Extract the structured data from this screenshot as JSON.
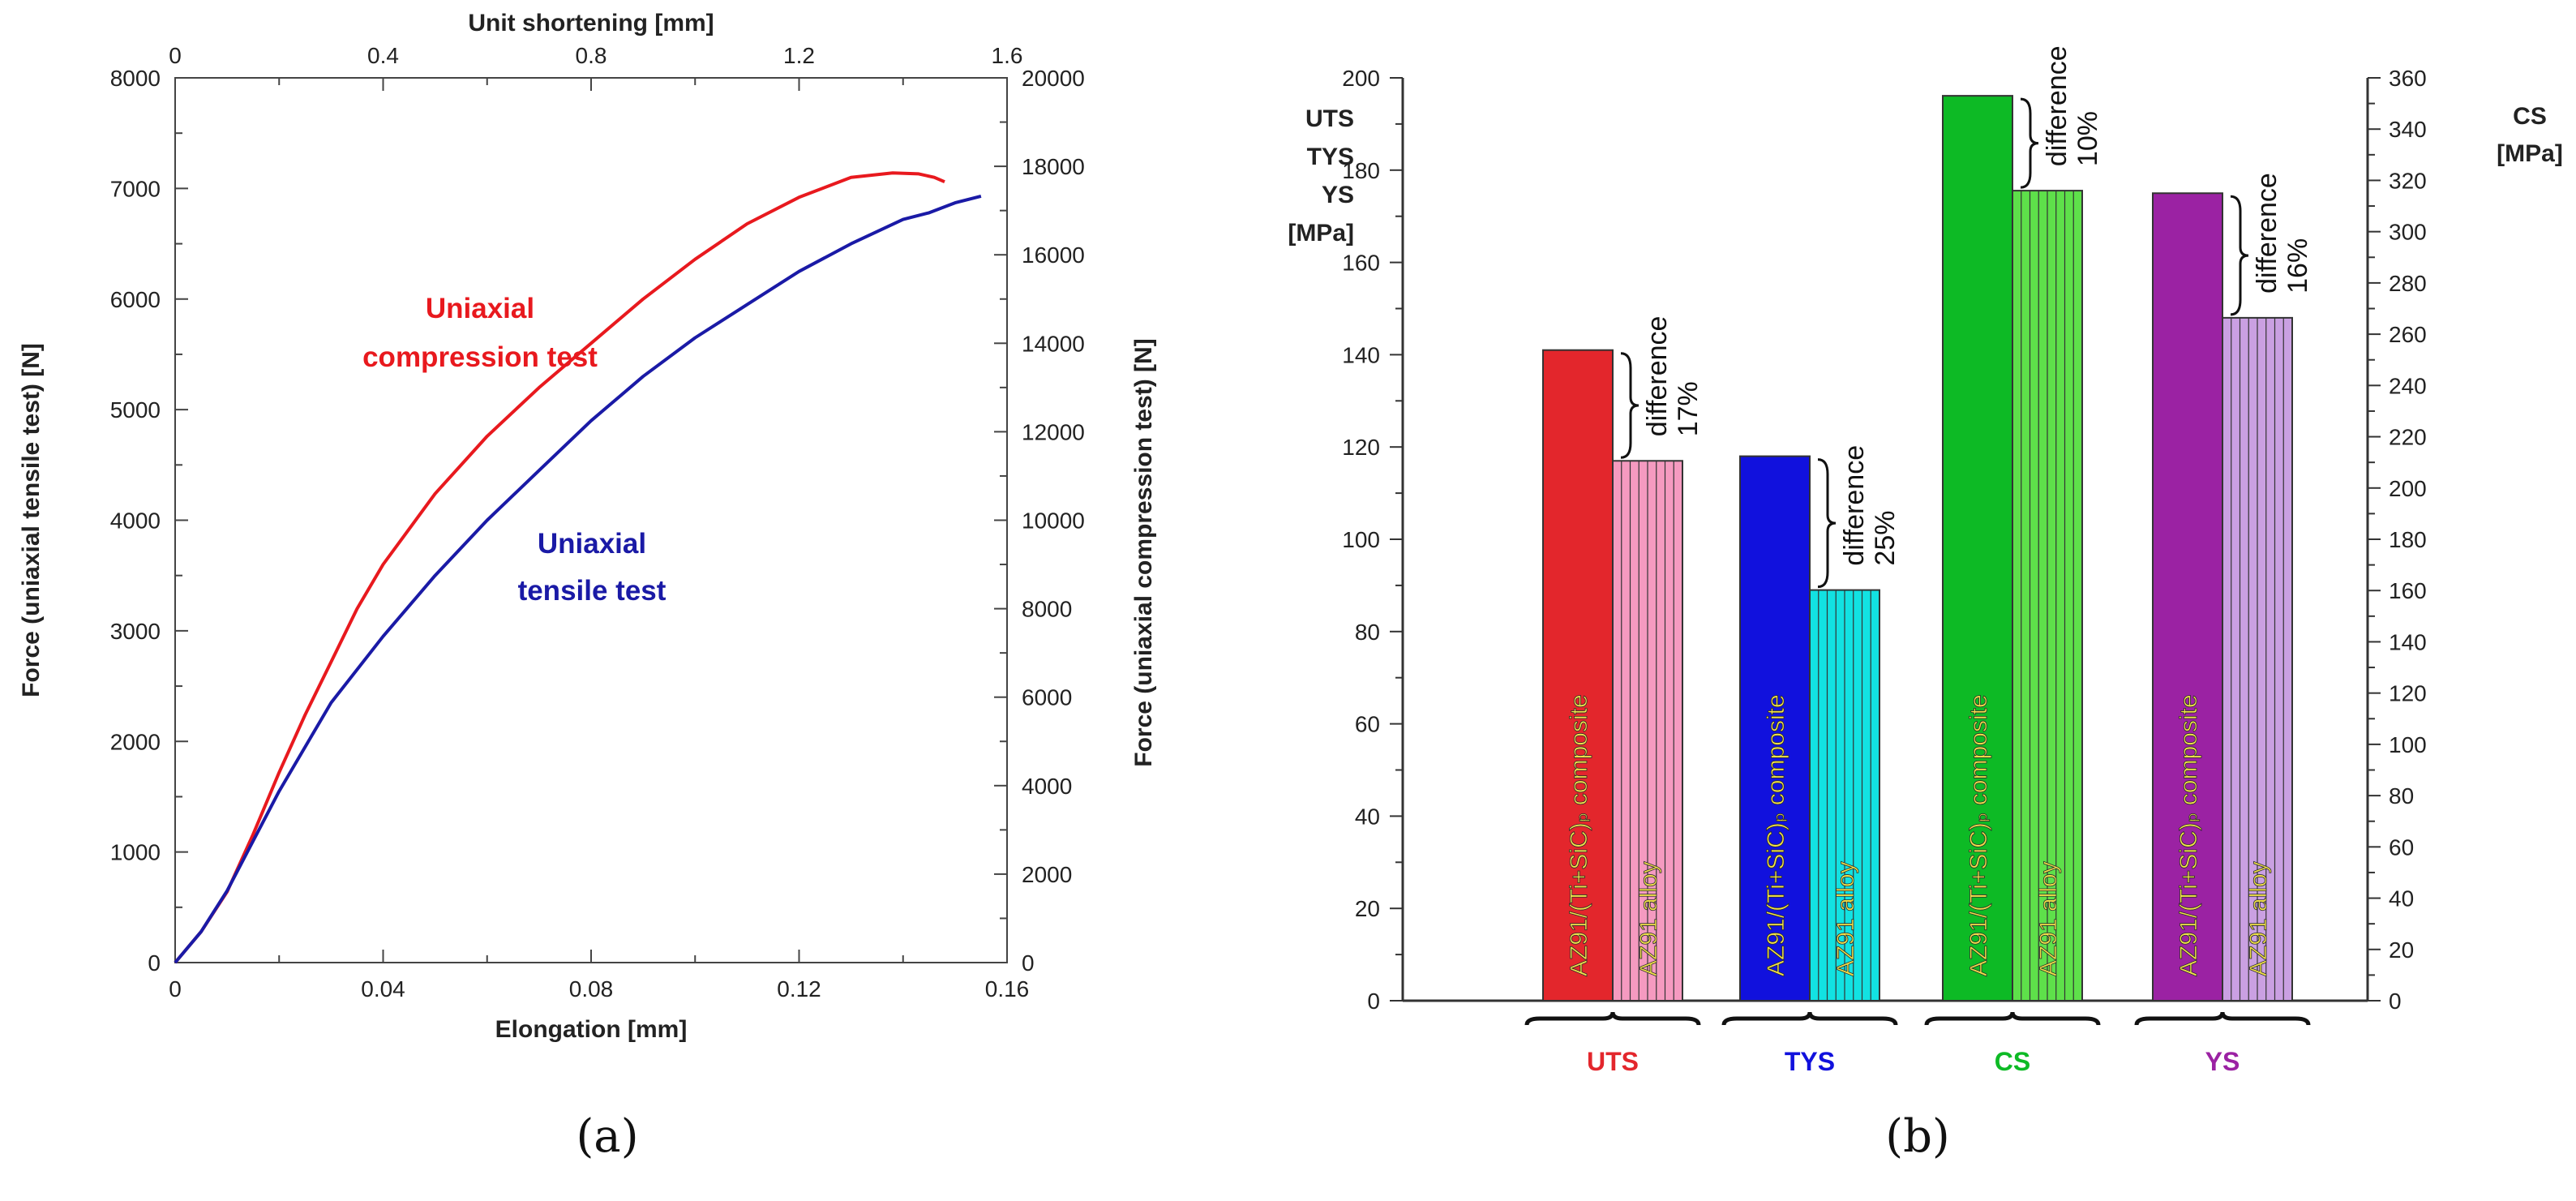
{
  "chart_data": [
    {
      "type": "line",
      "panel_label": "(a)",
      "xlabel": "Elongation [mm]",
      "xlim": [
        0,
        0.16
      ],
      "xticks": [
        "0",
        "0.04",
        "0.08",
        "0.12",
        "0.16"
      ],
      "x2label": "Unit shortening [mm]",
      "x2lim": [
        0,
        1.6
      ],
      "x2ticks": [
        "0",
        "0.4",
        "0.8",
        "1.2",
        "1.6"
      ],
      "ylabel": "Force (uniaxial tensile test) [N]",
      "ylim": [
        0,
        8000
      ],
      "yticks": [
        "0",
        "1000",
        "2000",
        "3000",
        "4000",
        "5000",
        "6000",
        "7000",
        "8000"
      ],
      "y2label": "Force (uniaxial compression test) [N]",
      "y2lim": [
        0,
        20000
      ],
      "y2ticks": [
        "0",
        "2000",
        "4000",
        "6000",
        "8000",
        "10000",
        "12000",
        "14000",
        "16000",
        "18000",
        "20000"
      ],
      "series": [
        {
          "name": "Uniaxial compression test",
          "label_lines": [
            "Uniaxial",
            "compression test"
          ],
          "color": "#e8191e",
          "axes": "top-right",
          "x": [
            0,
            0.05,
            0.1,
            0.15,
            0.2,
            0.25,
            0.3,
            0.35,
            0.4,
            0.5,
            0.6,
            0.7,
            0.8,
            0.9,
            1.0,
            1.1,
            1.2,
            1.3,
            1.38,
            1.43,
            1.46,
            1.48
          ],
          "y": [
            0,
            700,
            1600,
            2900,
            4300,
            5600,
            6800,
            8000,
            9000,
            10600,
            11900,
            13000,
            14000,
            15000,
            15900,
            16700,
            17300,
            17750,
            17850,
            17830,
            17750,
            17650
          ]
        },
        {
          "name": "Uniaxial tensile test",
          "label_lines": [
            "Uniaxial",
            "tensile test"
          ],
          "color": "#1a1aa6",
          "axes": "bottom-left",
          "x": [
            0,
            0.005,
            0.01,
            0.015,
            0.02,
            0.025,
            0.03,
            0.04,
            0.05,
            0.06,
            0.07,
            0.08,
            0.09,
            0.1,
            0.11,
            0.12,
            0.13,
            0.14,
            0.145,
            0.15,
            0.155
          ],
          "y": [
            0,
            280,
            650,
            1100,
            1550,
            1950,
            2350,
            2950,
            3500,
            4000,
            4450,
            4900,
            5300,
            5650,
            5950,
            6250,
            6500,
            6720,
            6780,
            6870,
            6930
          ]
        }
      ]
    },
    {
      "type": "bar",
      "panel_label": "(b)",
      "ylabel_lines": [
        "UTS",
        "TYS",
        "YS",
        "[MPa]"
      ],
      "ylim": [
        0,
        200
      ],
      "yticks": [
        "0",
        "20",
        "40",
        "60",
        "80",
        "100",
        "120",
        "140",
        "160",
        "180",
        "200"
      ],
      "y2label_lines": [
        "CS",
        "[MPa]"
      ],
      "y2lim": [
        0,
        360
      ],
      "y2ticks": [
        "0",
        "20",
        "40",
        "60",
        "80",
        "100",
        "120",
        "140",
        "160",
        "180",
        "200",
        "220",
        "240",
        "260",
        "280",
        "300",
        "320",
        "340",
        "360"
      ],
      "groups": [
        {
          "category": "UTS",
          "color": "#e3262c",
          "light": "#f59ac0",
          "composite_label": "AZ91/(Ti+SiC)ₚ composite",
          "alloy_label": "AZ91 alloy",
          "composite_value": 141,
          "alloy_value": 117,
          "axis": "left",
          "difference_label": "difference",
          "difference_pct": "17%"
        },
        {
          "category": "TYS",
          "color": "#1111dd",
          "light": "#12e2e2",
          "composite_label": "AZ91/(Ti+SiC)ₚ composite",
          "alloy_label": "AZ91 alloy",
          "composite_value": 118,
          "alloy_value": 89,
          "axis": "left",
          "difference_label": "difference",
          "difference_pct": "25%"
        },
        {
          "category": "CS",
          "color": "#0dba25",
          "light": "#5ee04a",
          "composite_label": "AZ91/(Ti+SiC)ₚ composite",
          "alloy_label": "AZ91 alloy",
          "composite_value": 353,
          "alloy_value": 316,
          "axis": "right",
          "difference_label": "difference",
          "difference_pct": "10%"
        },
        {
          "category": "YS",
          "color": "#9b22a3",
          "light": "#caa0e2",
          "composite_label": "AZ91/(Ti+SiC)ₚ composite",
          "alloy_label": "AZ91 alloy",
          "composite_value": 175,
          "alloy_value": 148,
          "axis": "left",
          "difference_label": "difference",
          "difference_pct": "16%"
        }
      ]
    }
  ]
}
